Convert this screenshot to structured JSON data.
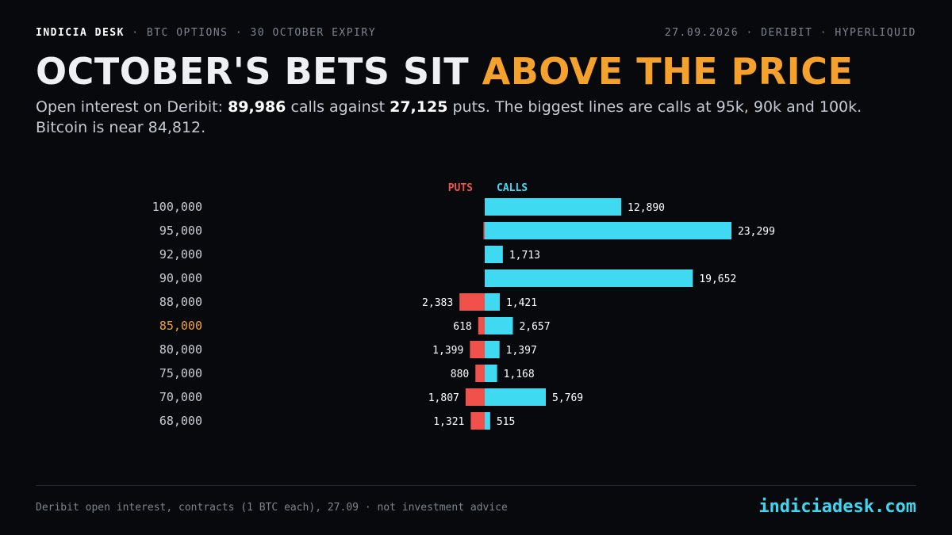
{
  "header": {
    "brand": "INDICIA DESK",
    "context": " · BTC OPTIONS · 30 OCTOBER EXPIRY",
    "meta": "27.09.2026 · DERIBIT · HYPERLIQUID"
  },
  "headline": {
    "main": "OCTOBER'S BETS SIT ",
    "accent": "ABOVE THE PRICE"
  },
  "subtitle": {
    "p1": "Open interest on Deribit: ",
    "calls_total": "89,986",
    "p2": " calls against ",
    "puts_total": "27,125",
    "p3": " puts. The biggest lines are calls at 95k, 90k and 100k. Bitcoin is near 84,812."
  },
  "footer": {
    "note": "Deribit open interest, contracts (1 BTC each), 27.09 · not investment advice",
    "site": "indiciadesk.com"
  },
  "colors": {
    "calls": "#3fd9f2",
    "puts": "#f0524b",
    "accent": "#f4a12d",
    "strike_label": "#c9cdd4"
  },
  "chart_data": {
    "type": "bar",
    "orientation": "horizontal-diverging",
    "legend": {
      "puts": "PUTS",
      "calls": "CALLS"
    },
    "highlight_strike": "85,000",
    "categories": [
      "100,000",
      "95,000",
      "92,000",
      "90,000",
      "88,000",
      "85,000",
      "80,000",
      "75,000",
      "70,000",
      "68,000"
    ],
    "series": [
      {
        "name": "PUTS",
        "values": [
          0,
          120,
          0,
          0,
          2383,
          618,
          1399,
          880,
          1807,
          1321
        ],
        "labels": [
          "",
          "",
          "",
          "",
          "2,383",
          "618",
          "1,399",
          "880",
          "1,807",
          "1,321"
        ]
      },
      {
        "name": "CALLS",
        "values": [
          12890,
          23299,
          1713,
          19652,
          1421,
          2657,
          1397,
          1168,
          5769,
          515
        ],
        "labels": [
          "12,890",
          "23,299",
          "1,713",
          "19,652",
          "1,421",
          "2,657",
          "1,397",
          "1,168",
          "5,769",
          "515"
        ]
      }
    ]
  }
}
